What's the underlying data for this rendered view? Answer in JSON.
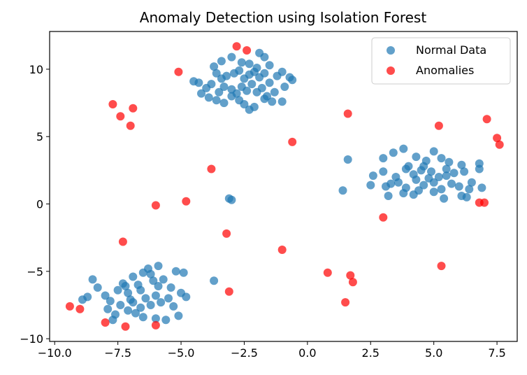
{
  "chart_data": {
    "type": "scatter",
    "title": "Anomaly Detection using Isolation Forest",
    "xlabel": "",
    "ylabel": "",
    "xlim": [
      -10.2,
      8.3
    ],
    "ylim": [
      -10.2,
      12.8
    ],
    "xticks": [
      -10.0,
      -7.5,
      -5.0,
      -2.5,
      0.0,
      2.5,
      5.0,
      7.5
    ],
    "xtick_labels": [
      "−10.0",
      "−7.5",
      "−5.0",
      "−2.5",
      "0.0",
      "2.5",
      "5.0",
      "7.5"
    ],
    "yticks": [
      -10,
      -5,
      0,
      5,
      10
    ],
    "ytick_labels": [
      "−10",
      "−5",
      "0",
      "5",
      "10"
    ],
    "grid": false,
    "legend_position": "top-right",
    "series": [
      {
        "name": "Normal Data",
        "color": "#1f77b4",
        "points": [
          [
            -3.4,
            10.6
          ],
          [
            -3.0,
            10.9
          ],
          [
            -2.6,
            10.5
          ],
          [
            -2.3,
            10.4
          ],
          [
            -1.9,
            11.2
          ],
          [
            -1.7,
            10.9
          ],
          [
            -3.6,
            9.7
          ],
          [
            -3.4,
            9.3
          ],
          [
            -3.2,
            9.5
          ],
          [
            -2.9,
            9.7
          ],
          [
            -2.7,
            9.9
          ],
          [
            -2.5,
            9.3
          ],
          [
            -2.3,
            9.6
          ],
          [
            -2.1,
            9.8
          ],
          [
            -1.9,
            9.4
          ],
          [
            -1.7,
            9.7
          ],
          [
            -1.5,
            9.0
          ],
          [
            -1.2,
            9.5
          ],
          [
            -1.0,
            9.8
          ],
          [
            -0.6,
            9.2
          ],
          [
            -4.3,
            9.0
          ],
          [
            -4.0,
            8.6
          ],
          [
            -3.8,
            8.9
          ],
          [
            -3.5,
            8.3
          ],
          [
            -3.3,
            8.7
          ],
          [
            -3.0,
            8.5
          ],
          [
            -2.8,
            8.2
          ],
          [
            -2.6,
            8.7
          ],
          [
            -2.4,
            8.4
          ],
          [
            -2.2,
            8.9
          ],
          [
            -2.0,
            8.3
          ],
          [
            -1.8,
            8.6
          ],
          [
            -1.6,
            8.0
          ],
          [
            -1.3,
            8.3
          ],
          [
            -0.9,
            8.7
          ],
          [
            -4.2,
            8.2
          ],
          [
            -3.9,
            7.9
          ],
          [
            -3.6,
            7.7
          ],
          [
            -3.3,
            7.5
          ],
          [
            -3.0,
            8.0
          ],
          [
            -2.7,
            7.7
          ],
          [
            -2.5,
            7.4
          ],
          [
            -2.3,
            7.0
          ],
          [
            -2.1,
            7.2
          ],
          [
            -1.7,
            7.8
          ],
          [
            -1.4,
            7.6
          ],
          [
            -1.0,
            7.6
          ],
          [
            -3.7,
            10.2
          ],
          [
            -2.0,
            10.1
          ],
          [
            -1.5,
            10.3
          ],
          [
            -4.5,
            9.1
          ],
          [
            -0.7,
            9.4
          ],
          [
            -8.5,
            -5.6
          ],
          [
            -8.3,
            -6.2
          ],
          [
            -8.0,
            -6.8
          ],
          [
            -7.8,
            -7.2
          ],
          [
            -7.5,
            -6.4
          ],
          [
            -7.3,
            -5.9
          ],
          [
            -7.1,
            -6.6
          ],
          [
            -6.9,
            -5.4
          ],
          [
            -6.7,
            -6.0
          ],
          [
            -6.5,
            -5.1
          ],
          [
            -6.3,
            -4.8
          ],
          [
            -6.1,
            -5.7
          ],
          [
            -5.9,
            -6.1
          ],
          [
            -5.7,
            -5.6
          ],
          [
            -5.4,
            -6.2
          ],
          [
            -5.2,
            -5.0
          ],
          [
            -4.9,
            -5.1
          ],
          [
            -4.8,
            -6.9
          ],
          [
            -7.9,
            -7.8
          ],
          [
            -7.6,
            -8.2
          ],
          [
            -7.4,
            -7.5
          ],
          [
            -7.1,
            -7.9
          ],
          [
            -6.9,
            -7.3
          ],
          [
            -6.6,
            -7.7
          ],
          [
            -6.4,
            -7.0
          ],
          [
            -6.2,
            -7.5
          ],
          [
            -6.0,
            -6.8
          ],
          [
            -5.8,
            -7.3
          ],
          [
            -5.5,
            -7.0
          ],
          [
            -5.3,
            -7.6
          ],
          [
            -5.0,
            -6.6
          ],
          [
            -8.7,
            -6.9
          ],
          [
            -8.9,
            -7.1
          ],
          [
            -6.8,
            -8.1
          ],
          [
            -6.5,
            -8.4
          ],
          [
            -6.0,
            -8.5
          ],
          [
            -5.6,
            -8.6
          ],
          [
            -5.1,
            -8.3
          ],
          [
            -7.7,
            -8.6
          ],
          [
            -7.2,
            -6.1
          ],
          [
            -6.6,
            -6.4
          ],
          [
            -6.2,
            -5.2
          ],
          [
            -5.9,
            -4.6
          ],
          [
            -7.0,
            -7.1
          ],
          [
            3.0,
            3.4
          ],
          [
            3.4,
            3.8
          ],
          [
            3.8,
            4.1
          ],
          [
            4.3,
            3.5
          ],
          [
            4.7,
            3.2
          ],
          [
            5.0,
            3.9
          ],
          [
            5.3,
            3.4
          ],
          [
            5.6,
            3.1
          ],
          [
            6.1,
            2.9
          ],
          [
            6.8,
            3.0
          ],
          [
            2.6,
            2.1
          ],
          [
            3.0,
            2.4
          ],
          [
            3.5,
            2.0
          ],
          [
            3.9,
            2.6
          ],
          [
            4.2,
            2.2
          ],
          [
            4.6,
            2.8
          ],
          [
            4.9,
            2.4
          ],
          [
            5.2,
            2.0
          ],
          [
            5.5,
            2.6
          ],
          [
            5.8,
            2.3
          ],
          [
            6.2,
            2.4
          ],
          [
            6.8,
            2.6
          ],
          [
            2.5,
            1.4
          ],
          [
            3.1,
            1.3
          ],
          [
            3.6,
            1.6
          ],
          [
            3.9,
            1.2
          ],
          [
            4.3,
            1.8
          ],
          [
            4.6,
            1.4
          ],
          [
            5.0,
            1.6
          ],
          [
            5.3,
            1.1
          ],
          [
            5.7,
            1.5
          ],
          [
            6.0,
            1.3
          ],
          [
            6.4,
            1.1
          ],
          [
            6.9,
            1.2
          ],
          [
            3.2,
            0.6
          ],
          [
            3.8,
            0.8
          ],
          [
            4.4,
            1.0
          ],
          [
            5.0,
            0.9
          ],
          [
            5.4,
            0.4
          ],
          [
            6.1,
            0.6
          ],
          [
            6.3,
            0.5
          ],
          [
            4.0,
            2.8
          ],
          [
            4.5,
            2.5
          ],
          [
            4.8,
            1.9
          ],
          [
            5.5,
            2.1
          ],
          [
            3.3,
            1.5
          ],
          [
            4.2,
            0.7
          ],
          [
            6.5,
            1.6
          ],
          [
            1.6,
            3.3
          ],
          [
            1.4,
            1.0
          ],
          [
            -3.1,
            0.4
          ],
          [
            -3.0,
            0.3
          ],
          [
            -3.7,
            -5.7
          ]
        ]
      },
      {
        "name": "Anomalies",
        "color": "#ff0000",
        "points": [
          [
            -2.8,
            11.7
          ],
          [
            -2.4,
            11.4
          ],
          [
            -5.1,
            9.8
          ],
          [
            -7.7,
            7.4
          ],
          [
            -7.4,
            6.5
          ],
          [
            -6.9,
            7.1
          ],
          [
            -7.0,
            5.8
          ],
          [
            1.6,
            6.7
          ],
          [
            -0.6,
            4.6
          ],
          [
            5.2,
            5.8
          ],
          [
            7.1,
            6.3
          ],
          [
            7.5,
            4.9
          ],
          [
            7.6,
            4.4
          ],
          [
            -3.8,
            2.6
          ],
          [
            -4.8,
            0.2
          ],
          [
            -6.0,
            -0.1
          ],
          [
            6.8,
            0.1
          ],
          [
            7.0,
            0.1
          ],
          [
            3.0,
            -1.0
          ],
          [
            -3.2,
            -2.2
          ],
          [
            -7.3,
            -2.8
          ],
          [
            -1.0,
            -3.4
          ],
          [
            5.3,
            -4.6
          ],
          [
            0.8,
            -5.1
          ],
          [
            1.7,
            -5.3
          ],
          [
            1.8,
            -5.8
          ],
          [
            -3.1,
            -6.5
          ],
          [
            1.5,
            -7.3
          ],
          [
            -9.4,
            -7.6
          ],
          [
            -9.0,
            -7.8
          ],
          [
            -8.0,
            -8.8
          ],
          [
            -7.2,
            -9.1
          ],
          [
            -6.0,
            -9.0
          ]
        ]
      }
    ]
  }
}
